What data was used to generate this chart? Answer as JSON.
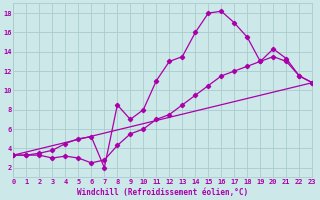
{
  "xlabel": "Windchill (Refroidissement éolien,°C)",
  "bg_color": "#cce8e8",
  "grid_color": "#aacccc",
  "line_color": "#aa00aa",
  "xmin": 0,
  "xmax": 23,
  "ymin": 1,
  "ymax": 19,
  "yticks": [
    2,
    4,
    6,
    8,
    10,
    12,
    14,
    16,
    18
  ],
  "xticks": [
    0,
    1,
    2,
    3,
    4,
    5,
    6,
    7,
    8,
    9,
    10,
    11,
    12,
    13,
    14,
    15,
    16,
    17,
    18,
    19,
    20,
    21,
    22,
    23
  ],
  "series1_x": [
    0,
    1,
    2,
    3,
    4,
    5,
    6,
    7,
    8,
    9,
    10,
    11,
    12,
    13,
    14,
    15,
    16,
    17,
    18,
    19,
    20,
    21,
    22,
    23
  ],
  "series1_y": [
    3.3,
    3.3,
    3.5,
    3.8,
    4.5,
    5.0,
    5.2,
    2.0,
    8.5,
    7.0,
    8.0,
    11.0,
    13.0,
    13.5,
    16.0,
    18.0,
    18.2,
    17.0,
    15.5,
    13.0,
    14.3,
    13.3,
    11.5,
    10.8
  ],
  "series2_x": [
    0,
    1,
    2,
    3,
    4,
    5,
    6,
    7,
    8,
    9,
    10,
    11,
    12,
    13,
    14,
    15,
    16,
    17,
    18,
    19,
    20,
    21,
    22,
    23
  ],
  "series2_y": [
    3.3,
    3.3,
    3.3,
    3.0,
    3.2,
    3.0,
    2.5,
    2.8,
    4.3,
    5.5,
    6.0,
    7.0,
    7.5,
    8.5,
    9.5,
    10.5,
    11.5,
    12.0,
    12.5,
    13.0,
    13.5,
    13.0,
    11.5,
    10.8
  ],
  "series3_x": [
    0,
    23
  ],
  "series3_y": [
    3.3,
    10.8
  ]
}
